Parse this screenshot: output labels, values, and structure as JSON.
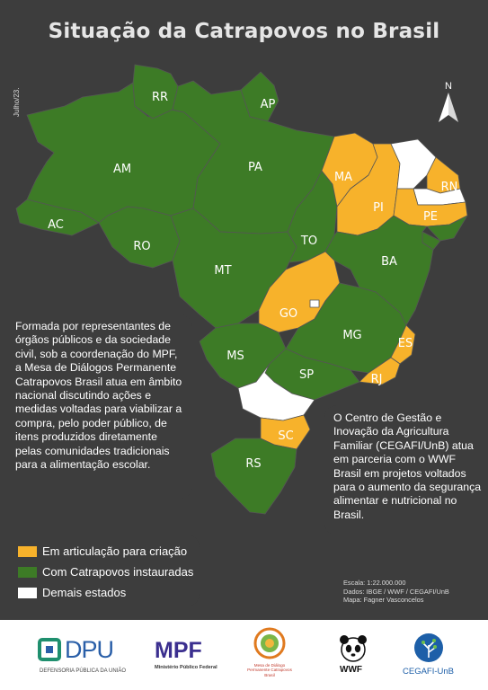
{
  "title": "Situação da Catrapovos no Brasil",
  "date_label": "Julho/23.",
  "north_label": "N",
  "colors": {
    "background": "#3d3d3d",
    "em_articulacao": "#f7b22b",
    "com_catrapovos": "#3d7b26",
    "demais": "#ffffff"
  },
  "states": {
    "RR": {
      "label": "RR",
      "status": "com_catrapovos"
    },
    "AP": {
      "label": "AP",
      "status": "com_catrapovos"
    },
    "AM": {
      "label": "AM",
      "status": "com_catrapovos"
    },
    "PA": {
      "label": "PA",
      "status": "com_catrapovos"
    },
    "MA": {
      "label": "MA",
      "status": "em_articulacao"
    },
    "PI": {
      "label": "PI",
      "status": "em_articulacao"
    },
    "CE": {
      "label": "",
      "status": "demais"
    },
    "RN": {
      "label": "RN",
      "status": "em_articulacao"
    },
    "PB": {
      "label": "",
      "status": "demais"
    },
    "PE": {
      "label": "PE",
      "status": "em_articulacao"
    },
    "AL": {
      "label": "",
      "status": "com_catrapovos"
    },
    "SE": {
      "label": "",
      "status": "com_catrapovos"
    },
    "AC": {
      "label": "AC",
      "status": "com_catrapovos"
    },
    "RO": {
      "label": "RO",
      "status": "com_catrapovos"
    },
    "TO": {
      "label": "TO",
      "status": "com_catrapovos"
    },
    "BA": {
      "label": "BA",
      "status": "com_catrapovos"
    },
    "MT": {
      "label": "MT",
      "status": "com_catrapovos"
    },
    "GO": {
      "label": "GO",
      "status": "em_articulacao"
    },
    "DF": {
      "label": "",
      "status": "demais"
    },
    "MG": {
      "label": "MG",
      "status": "com_catrapovos"
    },
    "ES": {
      "label": "ES",
      "status": "em_articulacao"
    },
    "MS": {
      "label": "MS",
      "status": "com_catrapovos"
    },
    "SP": {
      "label": "SP",
      "status": "com_catrapovos"
    },
    "RJ": {
      "label": "RJ",
      "status": "em_articulacao"
    },
    "PR": {
      "label": "",
      "status": "demais"
    },
    "SC": {
      "label": "SC",
      "status": "em_articulacao"
    },
    "RS": {
      "label": "RS",
      "status": "com_catrapovos"
    }
  },
  "left_text": "Formada por representantes de órgãos públicos e da sociedade civil, sob a coordenação do MPF, a Mesa de Diálogos Permanente Catrapovos Brasil atua em âmbito nacional discutindo ações e medidas voltadas para viabilizar a compra, pelo poder público, de itens produzidos diretamente pelas comunidades tradicionais para a alimentação escolar.",
  "right_text": "O Centro de Gestão e Inovação da Agricultura Familiar (CEGAFI/UnB) atua em parceria com o WWF Brasil em projetos voltados para o aumento da segurança alimentar e nutricional no Brasil.",
  "legend": [
    {
      "label": "Em articulação para criação",
      "color": "#f7b22b"
    },
    {
      "label": "Com Catrapovos instauradas",
      "color": "#3d7b26"
    },
    {
      "label": "Demais estados",
      "color": "#ffffff"
    }
  ],
  "credits": {
    "scale": "Escala: 1:22.000.000",
    "data": "Dados: IBGE / WWF / CEGAFI/UnB",
    "map": "Mapa: Fagner Vasconcelos"
  },
  "logos": {
    "dpu": {
      "name": "DPU",
      "subtitle": "DEFENSORIA PÚBLICA DA UNIÃO"
    },
    "mpf": {
      "name": "MPF",
      "subtitle": "Ministério Público Federal"
    },
    "mesa": {
      "subtitle": "Mesa de Diálogo Permanente Catrapovos Brasil"
    },
    "wwf": {
      "name": "WWF"
    },
    "cegafi": {
      "name": "CEGAFI-UnB"
    }
  }
}
